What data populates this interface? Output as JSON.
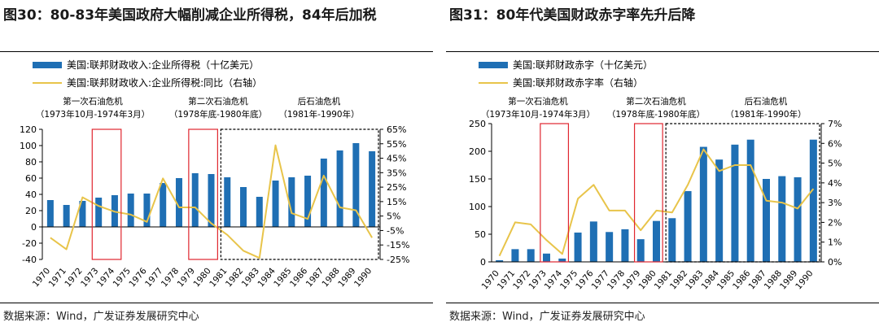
{
  "colors": {
    "bar": "#1f6fb4",
    "line": "#e8c44a",
    "crisis_box": "#e0262f",
    "axis": "#000000"
  },
  "charts": [
    {
      "title": "图30：80-83年美国政府大幅削减企业所得税，84年后加税",
      "source": "数据来源：Wind，广发证券发展研究中心",
      "legend": {
        "bar": "美国:联邦财政收入:企业所得税（十亿美元）",
        "line": "美国:联邦财政收入:企业所得税:同比（右轴）"
      },
      "annotations": [
        {
          "line1": "第一次石油危机",
          "line2": "（1973年10月-1974年3月）"
        },
        {
          "line1": "第二次石油危机",
          "line2": "（1978年底-1980年底）"
        },
        {
          "line1": "后石油危机",
          "line2": "（1981年-1990年）"
        }
      ]
    },
    {
      "title": "图31：80年代美国财政赤字率先升后降",
      "source": "数据来源：Wind，广发证券发展研究中心",
      "legend": {
        "bar": "美国:联邦财政赤字（十亿美元）",
        "line": "美国:联邦财政赤字率（右轴）"
      },
      "annotations": [
        {
          "line1": "第一次石油危机",
          "line2": "（1973年10月-1974年3月）"
        },
        {
          "line1": "第二次石油危机",
          "line2": "（1978年底-1980年底）"
        },
        {
          "line1": "后石油危机",
          "line2": "（1981年-1990年）"
        }
      ]
    }
  ],
  "chart_data": [
    {
      "type": "bar",
      "title": "80-83年美国政府大幅削减企业所得税，84年后加税",
      "categories": [
        "1970",
        "1971",
        "1972",
        "1973",
        "1974",
        "1975",
        "1976",
        "1977",
        "1978",
        "1979",
        "1980",
        "1981",
        "1982",
        "1983",
        "1984",
        "1985",
        "1986",
        "1987",
        "1988",
        "1989",
        "1990"
      ],
      "series": [
        {
          "name": "美国:联邦财政收入:企业所得税（十亿美元）",
          "type": "bar",
          "axis": "left",
          "values": [
            33,
            27,
            32,
            36,
            39,
            41,
            41,
            54,
            60,
            66,
            65,
            61,
            49,
            37,
            57,
            61,
            63,
            84,
            94,
            103,
            93
          ]
        },
        {
          "name": "美国:联邦财政收入:企业所得税:同比（右轴）",
          "type": "line",
          "axis": "right",
          "unit": "%",
          "values": [
            -10,
            -18,
            18,
            12,
            8,
            6,
            1,
            31,
            11,
            11,
            0,
            -8,
            -19,
            -24,
            54,
            7,
            3,
            33,
            11,
            9,
            -10
          ]
        }
      ],
      "ylim_left": [
        -40,
        120
      ],
      "yticks_left": [
        -40,
        -20,
        0,
        20,
        40,
        60,
        80,
        100,
        120
      ],
      "ylim_right": [
        -25,
        65
      ],
      "yticks_right": [
        -25,
        -15,
        -5,
        5,
        15,
        25,
        35,
        45,
        55,
        65
      ],
      "ytick_labels_right": [
        "-25%",
        "-15%",
        "-5%",
        "5%",
        "15%",
        "25%",
        "35%",
        "45%",
        "55%",
        "65%"
      ],
      "crisis_periods": [
        {
          "from": "1973",
          "to": "1974",
          "style": "solid"
        },
        {
          "from": "1979",
          "to": "1980",
          "style": "solid"
        },
        {
          "from": "1981",
          "to": "1990",
          "style": "dashed"
        }
      ],
      "legend_position": "top-left"
    },
    {
      "type": "bar",
      "title": "80年代美国财政赤字率先升后降",
      "categories": [
        "1970",
        "1971",
        "1972",
        "1973",
        "1974",
        "1975",
        "1976",
        "1977",
        "1978",
        "1979",
        "1980",
        "1981",
        "1982",
        "1983",
        "1984",
        "1985",
        "1986",
        "1987",
        "1988",
        "1989",
        "1990"
      ],
      "series": [
        {
          "name": "美国:联邦财政赤字（十亿美元）",
          "type": "bar",
          "axis": "left",
          "values": [
            3,
            23,
            23,
            15,
            6,
            53,
            73,
            54,
            59,
            41,
            74,
            79,
            128,
            208,
            185,
            212,
            221,
            150,
            155,
            153,
            221
          ]
        },
        {
          "name": "美国:联邦财政赤字率（右轴）",
          "type": "line",
          "axis": "right",
          "unit": "%",
          "values": [
            0.3,
            2.0,
            1.9,
            1.1,
            0.4,
            3.2,
            3.9,
            2.6,
            2.6,
            1.6,
            2.6,
            2.5,
            3.9,
            5.7,
            4.6,
            4.9,
            4.9,
            3.1,
            3.0,
            2.7,
            3.7
          ]
        }
      ],
      "ylim_left": [
        0,
        250
      ],
      "yticks_left": [
        0,
        50,
        100,
        150,
        200,
        250
      ],
      "ylim_right": [
        0,
        7
      ],
      "yticks_right": [
        0,
        1,
        2,
        3,
        4,
        5,
        6,
        7
      ],
      "ytick_labels_right": [
        "0%",
        "1%",
        "2%",
        "3%",
        "4%",
        "5%",
        "6%",
        "7%"
      ],
      "crisis_periods": [
        {
          "from": "1973",
          "to": "1974",
          "style": "solid"
        },
        {
          "from": "1979",
          "to": "1980",
          "style": "solid"
        },
        {
          "from": "1981",
          "to": "1990",
          "style": "dashed"
        }
      ],
      "legend_position": "top-left"
    }
  ]
}
